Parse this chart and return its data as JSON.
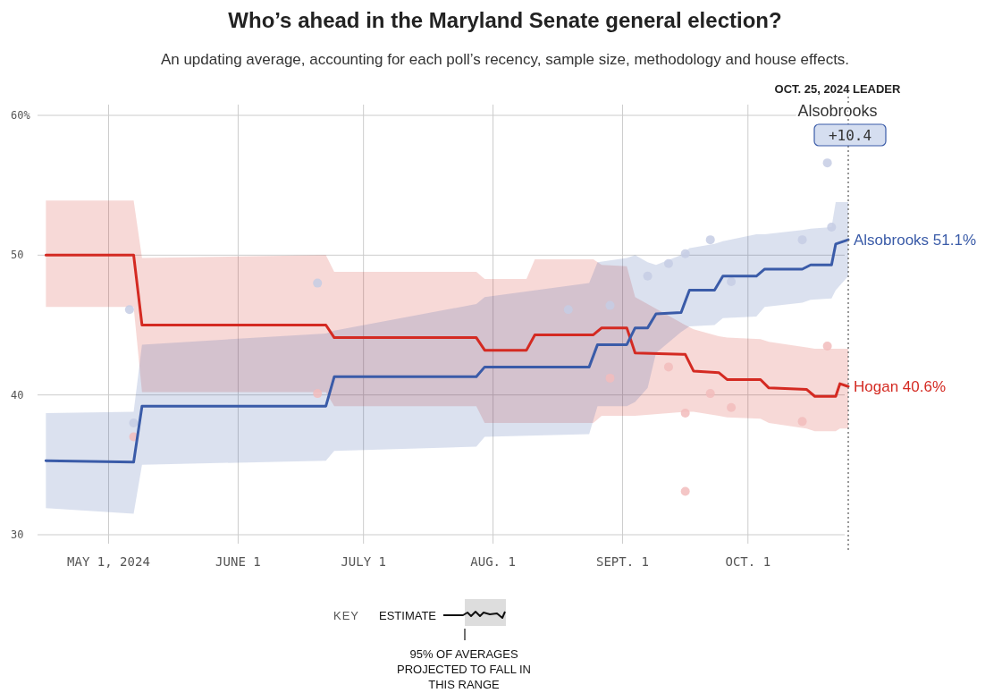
{
  "chart_data": {
    "type": "line",
    "title": "Who’s ahead in the Maryland Senate general election?",
    "subtitle": "An updating average, accounting for each poll’s recency, sample size, methodology and house effects.",
    "xlim": [
      "2024-04-14",
      "2024-10-25"
    ],
    "xticks": [
      {
        "value": "2024-05-01",
        "label": "MAY 1, 2024"
      },
      {
        "value": "2024-06-01",
        "label": "JUNE 1"
      },
      {
        "value": "2024-07-01",
        "label": "JULY 1"
      },
      {
        "value": "2024-08-01",
        "label": "AUG. 1"
      },
      {
        "value": "2024-09-01",
        "label": "SEPT. 1"
      },
      {
        "value": "2024-10-01",
        "label": "OCT. 1"
      }
    ],
    "ylim": [
      30,
      60
    ],
    "yticks": [
      30,
      40,
      50,
      {
        "value": 60,
        "label": "60%"
      }
    ],
    "grid": true,
    "series": [
      {
        "type": "scatter",
        "color": "#c6cce4",
        "marker": "circle",
        "x": [
          "2024-05-06",
          "2024-05-07",
          "2024-06-20",
          "2024-08-19",
          "2024-08-29",
          "2024-09-07",
          "2024-09-12",
          "2024-09-16",
          "2024-09-22",
          "2024-09-27",
          "2024-10-14",
          "2024-10-20",
          "2024-10-21"
        ],
        "values": [
          46.1,
          38.0,
          48.0,
          46.1,
          46.4,
          48.5,
          49.4,
          50.1,
          51.1,
          48.1,
          51.1,
          56.6,
          52.0
        ]
      },
      {
        "type": "scatter",
        "color": "#f2bcbc",
        "marker": "circle",
        "x": [
          "2024-05-07",
          "2024-06-20",
          "2024-08-29",
          "2024-09-12",
          "2024-09-16",
          "2024-09-16",
          "2024-09-22",
          "2024-09-27",
          "2024-10-14",
          "2024-10-20"
        ],
        "values": [
          37.0,
          40.1,
          41.2,
          42.0,
          38.7,
          33.1,
          40.1,
          39.1,
          38.1,
          43.5
        ]
      },
      {
        "color": "#d42a22",
        "x": [
          "2024-04-16",
          "2024-05-07",
          "2024-05-09",
          "2024-06-22",
          "2024-06-24",
          "2024-07-28",
          "2024-07-30",
          "2024-08-09",
          "2024-08-11",
          "2024-08-25",
          "2024-08-27",
          "2024-09-02",
          "2024-09-04",
          "2024-09-16",
          "2024-09-18",
          "2024-09-24",
          "2024-09-26",
          "2024-10-04",
          "2024-10-06",
          "2024-10-15",
          "2024-10-17",
          "2024-10-22",
          "2024-10-23",
          "2024-10-25"
        ],
        "values": [
          50.0,
          50.0,
          45.0,
          45.0,
          44.1,
          44.1,
          43.2,
          43.2,
          44.3,
          44.3,
          44.8,
          44.8,
          43.0,
          42.9,
          41.7,
          41.6,
          41.1,
          41.1,
          40.5,
          40.4,
          39.9,
          39.9,
          40.8,
          40.6
        ],
        "lower": [
          46.3,
          46.3,
          40.2,
          40.2,
          39.2,
          39.2,
          38.0,
          38.0,
          38.0,
          38.0,
          38.5,
          38.5,
          38.5,
          38.8,
          38.8,
          38.5,
          38.4,
          38.3,
          38.0,
          37.6,
          37.4,
          37.4,
          37.6,
          37.6
        ],
        "upper": [
          53.9,
          53.9,
          49.8,
          50.0,
          48.8,
          48.8,
          48.3,
          48.3,
          49.7,
          49.7,
          49.3,
          49.2,
          47.0,
          45.0,
          44.7,
          44.2,
          44.1,
          44.0,
          43.8,
          43.4,
          43.3,
          43.3,
          43.3,
          43.3
        ]
      },
      {
        "color": "#3a5ba8",
        "x": [
          "2024-04-16",
          "2024-05-07",
          "2024-05-09",
          "2024-06-22",
          "2024-06-24",
          "2024-07-28",
          "2024-07-30",
          "2024-08-24",
          "2024-08-26",
          "2024-09-02",
          "2024-09-04",
          "2024-09-07",
          "2024-09-09",
          "2024-09-15",
          "2024-09-17",
          "2024-09-23",
          "2024-09-25",
          "2024-10-03",
          "2024-10-05",
          "2024-10-14",
          "2024-10-16",
          "2024-10-21",
          "2024-10-22",
          "2024-10-25"
        ],
        "values": [
          35.3,
          35.2,
          39.2,
          39.2,
          41.3,
          41.3,
          42.0,
          42.0,
          43.6,
          43.6,
          44.8,
          44.8,
          45.8,
          45.9,
          47.5,
          47.5,
          48.5,
          48.5,
          49.0,
          49.0,
          49.3,
          49.3,
          50.8,
          51.1
        ],
        "lower": [
          31.9,
          31.5,
          35.0,
          35.3,
          36.0,
          36.3,
          37.0,
          37.2,
          39.2,
          39.2,
          39.5,
          40.5,
          43.0,
          44.5,
          44.9,
          45.0,
          45.5,
          45.6,
          46.3,
          46.6,
          46.8,
          46.9,
          47.5,
          48.5
        ],
        "upper": [
          38.7,
          38.8,
          43.6,
          44.4,
          44.6,
          46.5,
          47.0,
          48.0,
          49.5,
          49.8,
          50.0,
          49.5,
          49.3,
          50.0,
          50.5,
          50.8,
          51.0,
          51.5,
          51.5,
          51.8,
          51.9,
          52.0,
          53.8,
          53.8
        ]
      }
    ],
    "ref_lines": [
      {
        "axis": "x",
        "value": "2024-10-25",
        "label": "OCT. 25, 2024 LEADER",
        "line_style": "dotted",
        "color": "#777777"
      }
    ],
    "annotations": [
      "Alsobrooks",
      "+10.4",
      "KEY",
      "ESTIMATE",
      "95% OF AVERAGES PROJECTED TO FALL IN THIS RANGE",
      {
        "text": "Alsobrooks 51.1%",
        "x": "2024-10-25",
        "y": 51.1
      },
      {
        "text": "Hogan 40.6%",
        "x": "2024-10-25",
        "y": 40.6
      }
    ]
  }
}
